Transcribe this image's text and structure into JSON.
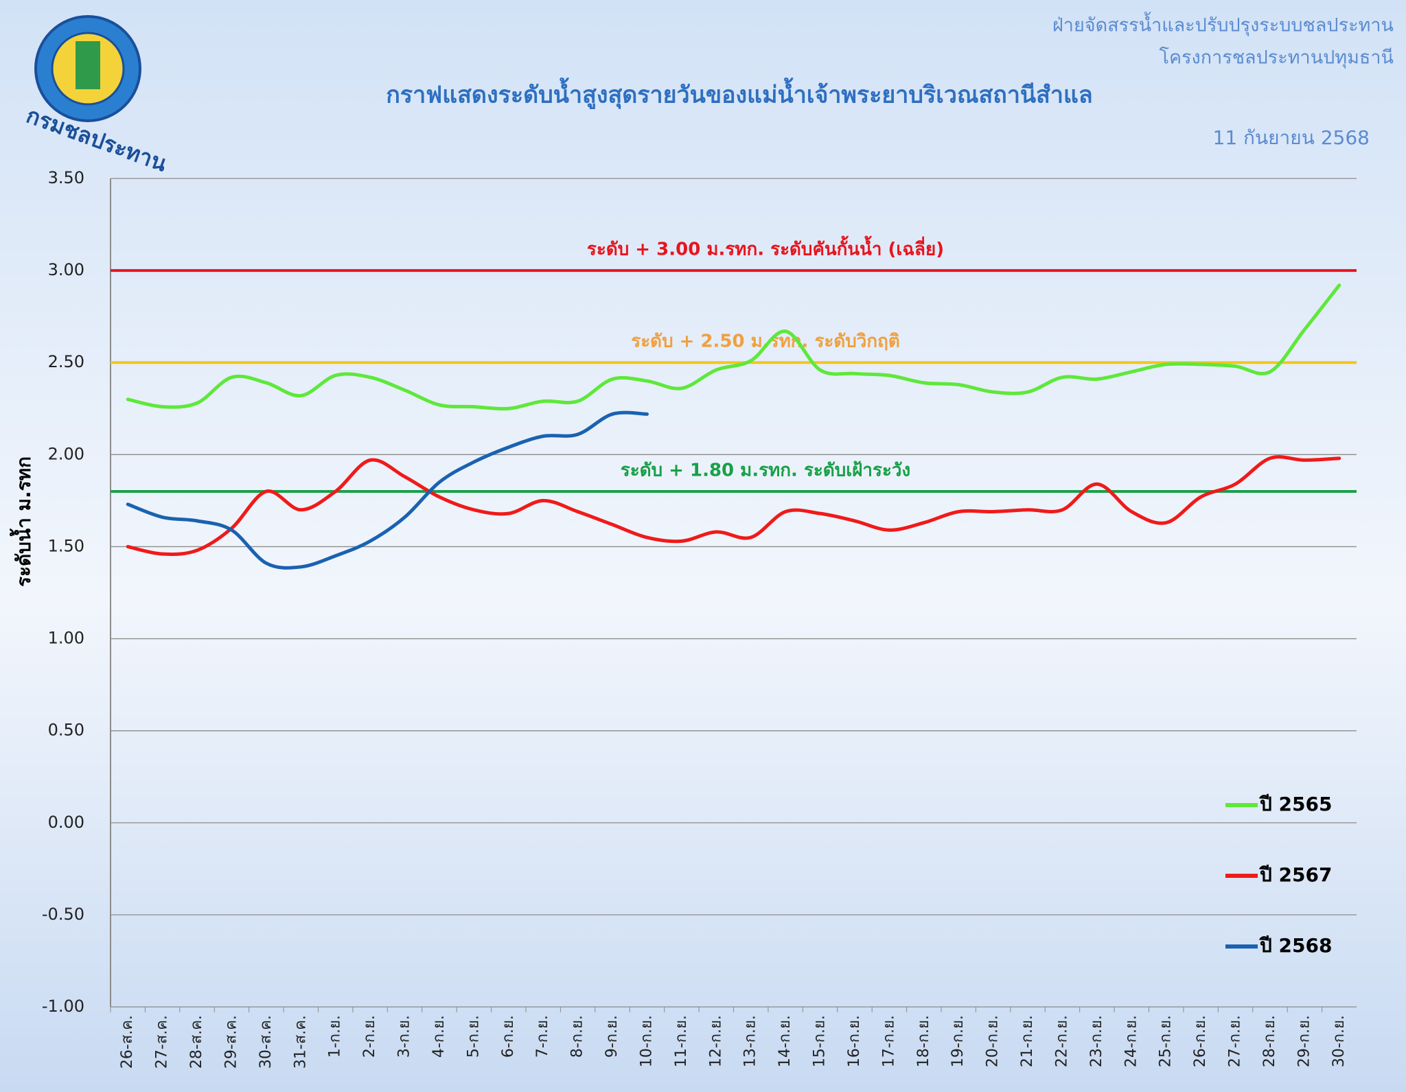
{
  "header": {
    "department": "ฝ่ายจัดสรรน้ำและปรับปรุงระบบชลประทาน",
    "project": "โครงการชลประทานปทุมธานี",
    "logo_text": "กรมชลประทาน"
  },
  "chart_data": {
    "type": "line",
    "title": "กราฟแสดงระดับน้ำสูงสุดรายวันของแม่น้ำเจ้าพระยาบริเวณสถานีสำแล",
    "date": "11 กันยายน 2568",
    "y_label": "ระดับน้ำ ม.รทก",
    "categories": [
      "26-ส.ค.",
      "27-ส.ค.",
      "28-ส.ค.",
      "29-ส.ค.",
      "30-ส.ค.",
      "31-ส.ค.",
      "1-ก.ย.",
      "2-ก.ย.",
      "3-ก.ย.",
      "4-ก.ย.",
      "5-ก.ย.",
      "6-ก.ย.",
      "7-ก.ย.",
      "8-ก.ย.",
      "9-ก.ย.",
      "10-ก.ย.",
      "11-ก.ย.",
      "12-ก.ย.",
      "13-ก.ย.",
      "14-ก.ย.",
      "15-ก.ย.",
      "16-ก.ย.",
      "17-ก.ย.",
      "18-ก.ย.",
      "19-ก.ย.",
      "20-ก.ย.",
      "21-ก.ย.",
      "22-ก.ย.",
      "23-ก.ย.",
      "24-ก.ย.",
      "25-ก.ย.",
      "26-ก.ย.",
      "27-ก.ย.",
      "28-ก.ย.",
      "29-ก.ย.",
      "30-ก.ย."
    ],
    "series": [
      {
        "name": "ปี 2565",
        "color": "#5ee83a",
        "values": [
          2.3,
          2.26,
          2.28,
          2.42,
          2.39,
          2.32,
          2.43,
          2.42,
          2.35,
          2.27,
          2.26,
          2.25,
          2.29,
          2.29,
          2.41,
          2.4,
          2.36,
          2.46,
          2.51,
          2.67,
          2.46,
          2.44,
          2.43,
          2.39,
          2.38,
          2.34,
          2.34,
          2.42,
          2.41,
          2.45,
          2.49,
          2.49,
          2.48,
          2.45,
          2.68,
          2.92
        ]
      },
      {
        "name": "ปี 2567",
        "color": "#f01a1a",
        "values": [
          1.5,
          1.46,
          1.48,
          1.6,
          1.8,
          1.7,
          1.8,
          1.97,
          1.88,
          1.77,
          1.7,
          1.68,
          1.75,
          1.69,
          1.62,
          1.55,
          1.53,
          1.58,
          1.55,
          1.69,
          1.68,
          1.64,
          1.59,
          1.63,
          1.69,
          1.69,
          1.7,
          1.7,
          1.84,
          1.69,
          1.63,
          1.77,
          1.84,
          1.98,
          1.97,
          1.98
        ]
      },
      {
        "name": "ปี 2568",
        "color": "#1a62b0",
        "values": [
          1.73,
          1.66,
          1.64,
          1.59,
          1.41,
          1.39,
          1.45,
          1.53,
          1.66,
          1.85,
          1.96,
          2.04,
          2.1,
          2.11,
          2.22,
          2.22,
          null,
          null,
          null,
          null,
          null,
          null,
          null,
          null,
          null,
          null,
          null,
          null,
          null,
          null,
          null,
          null,
          null,
          null,
          null,
          null
        ]
      }
    ],
    "reference_lines": [
      {
        "value": 3.0,
        "color": "#e8141c",
        "label_color": "#e8141c",
        "label": "ระดับ + 3.00 ม.รทก. ระดับคันกั้นน้ำ (เฉลี่ย)"
      },
      {
        "value": 2.5,
        "color": "#f5c518",
        "label_color": "#f0a040",
        "label": "ระดับ + 2.50 ม.รทก. ระดับวิกฤติ"
      },
      {
        "value": 1.8,
        "color": "#18a048",
        "label_color": "#18a048",
        "label": "ระดับ + 1.80 ม.รทก. ระดับเฝ้าระวัง"
      }
    ],
    "ylim": [
      -1.0,
      3.5
    ],
    "yticks": [
      {
        "value": -1.0,
        "label": "-1.00"
      },
      {
        "value": -0.5,
        "label": "-0.50"
      },
      {
        "value": 0.0,
        "label": "0.00"
      },
      {
        "value": 0.5,
        "label": "0.50"
      },
      {
        "value": 1.0,
        "label": "1.00"
      },
      {
        "value": 1.5,
        "label": "1.50"
      },
      {
        "value": 2.0,
        "label": "2.00"
      },
      {
        "value": 2.5,
        "label": "2.50"
      },
      {
        "value": 3.0,
        "label": "3.00"
      },
      {
        "value": 3.5,
        "label": "3.50"
      }
    ],
    "grid": true,
    "legend": "lower right"
  }
}
